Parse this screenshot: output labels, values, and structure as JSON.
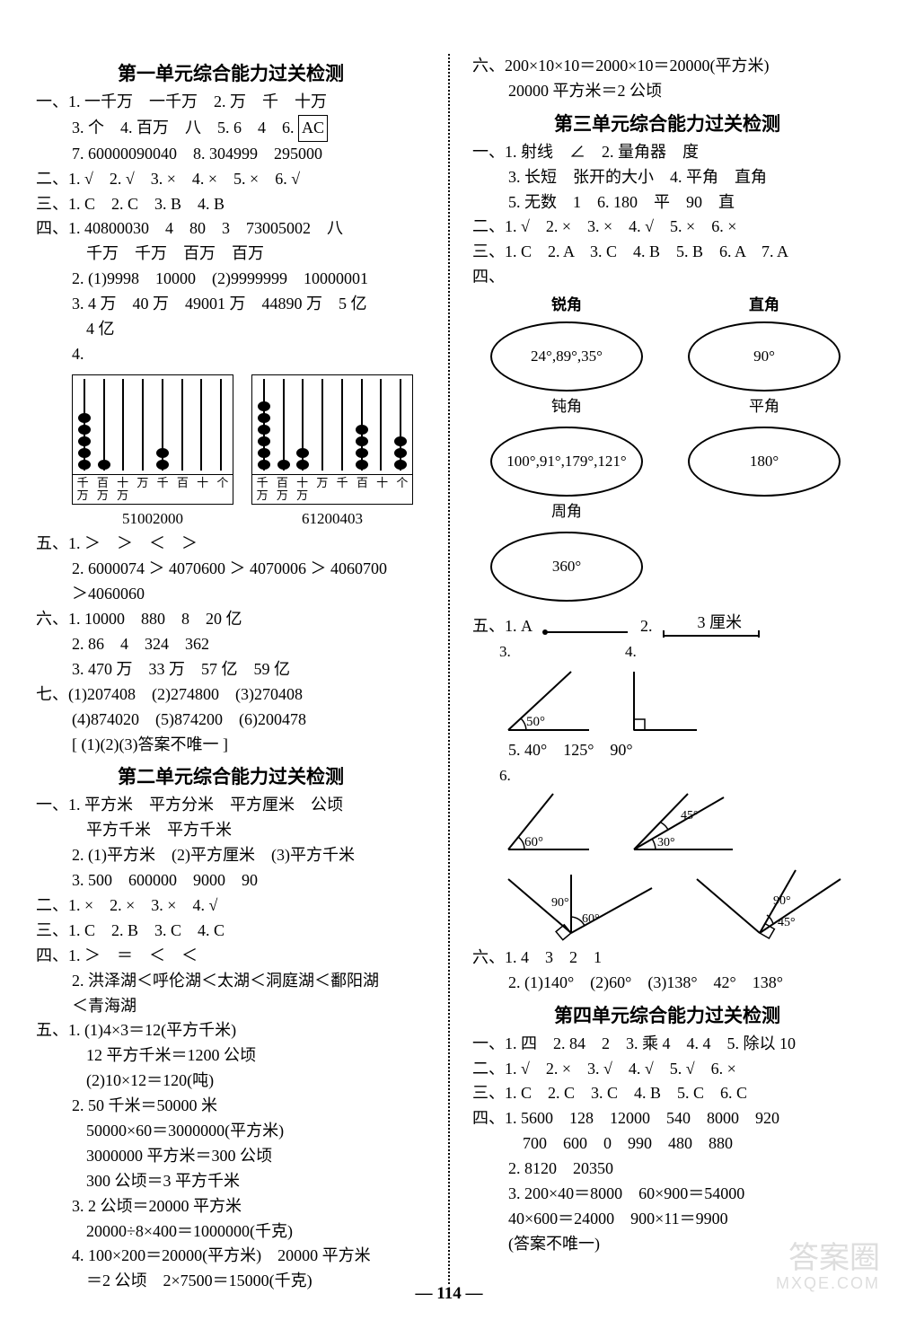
{
  "unit1": {
    "title": "第一单元综合能力过关检测",
    "l1": "一、1. 一千万　一千万　2. 万　千　十万",
    "l2a": "3. 个　4. 百万　八　5. 6　4　6. ",
    "l2b": "AC",
    "l3": "7. 60000090040　8. 304999　295000",
    "l4": "二、1. √　2. √　3. ×　4. ×　5. ×　6. √",
    "l5": "三、1. C　2. C　3. B　4. B",
    "l6": "四、1. 40800030　4　80　3　73005002　八",
    "l7": "千万　千万　百万　百万",
    "l8": "2. (1)9998　10000　(2)9999999　10000001",
    "l9": "3. 4 万　40 万　49001 万　44890 万　5 亿",
    "l10": "4 亿",
    "l11": "4.",
    "abacus1": {
      "beads": [
        5,
        1,
        0,
        0,
        2,
        0,
        0,
        0
      ],
      "labels": [
        "千万",
        "百万",
        "十万",
        "万",
        "千",
        "百",
        "十",
        "个"
      ],
      "num": "51002000"
    },
    "abacus2": {
      "beads": [
        6,
        1,
        2,
        0,
        0,
        4,
        0,
        3
      ],
      "labels": [
        "千万",
        "百万",
        "十万",
        "万",
        "千",
        "百",
        "十",
        "个"
      ],
      "num": "61200403"
    },
    "l12": "五、1. ＞　＞　＜　＞",
    "l13": "2. 6000074 ＞ 4070600 ＞ 4070006 ＞ 4060700",
    "l14": "＞4060060",
    "l15": "六、1. 10000　880　8　20 亿",
    "l16": "2. 86　4　324　362",
    "l17": "3. 470 万　33 万　57 亿　59 亿",
    "l18": "七、(1)207408　(2)274800　(3)270408",
    "l19": "(4)874020　(5)874200　(6)200478",
    "l20": "[ (1)(2)(3)答案不唯一 ]"
  },
  "unit2": {
    "title": "第二单元综合能力过关检测",
    "l1": "一、1. 平方米　平方分米　平方厘米　公顷",
    "l2": "平方千米　平方千米",
    "l3": "2. (1)平方米　(2)平方厘米　(3)平方千米",
    "l4": "3. 500　600000　9000　90",
    "l5": "二、1. ×　2. ×　3. ×　4. √",
    "l6": "三、1. C　2. B　3. C　4. C",
    "l7": "四、1. ＞　＝　＜　＜",
    "l8": "2. 洪泽湖＜呼伦湖＜太湖＜洞庭湖＜鄱阳湖",
    "l9": "＜青海湖",
    "l10": "五、1. (1)4×3＝12(平方千米)",
    "l11": "12 平方千米＝1200 公顷",
    "l12": "(2)10×12＝120(吨)",
    "l13": "2. 50 千米＝50000 米",
    "l14": "50000×60＝3000000(平方米)",
    "l15": "3000000 平方米＝300 公顷",
    "l16": "300 公顷＝3 平方千米",
    "l17": "3. 2 公顷＝20000 平方米",
    "l18": "20000÷8×400＝1000000(千克)",
    "l19": "4. 100×200＝20000(平方米)　20000 平方米",
    "l20": "＝2 公顷　2×7500＝15000(千克)"
  },
  "unit2r": {
    "l1": "六、200×10×10＝2000×10＝20000(平方米)",
    "l2": "20000 平方米＝2 公顷"
  },
  "unit3": {
    "title": "第三单元综合能力过关检测",
    "l1": "一、1. 射线　∠　2. 量角器　度",
    "l2": "3. 长短　张开的大小　4. 平角　直角",
    "l3": "5. 无数　1　6. 180　平　90　直",
    "l4": "二、1. √　2. ×　3. ×　4. √　5. ×　6. ×",
    "l5": "三、1. C　2. A　3. C　4. B　5. B　6. A　7. A",
    "l6": "四、",
    "hdr1": "锐角",
    "hdr2": "直角",
    "ov1": "24°,89°,35°",
    "ov2": "90°",
    "lab1": "钝角",
    "lab2": "平角",
    "ov3": "100°,91°,179°,121°",
    "ov4": "180°",
    "lab3": "周角",
    "ov5": "360°",
    "l51a": "五、1. A",
    "l51b": "2.",
    "l51c": "3 厘米",
    "a3": "3.",
    "a3l": "50°",
    "a4": "4.",
    "l55": "5. 40°　125°　90°",
    "a6": "6.",
    "a6a": "60°",
    "a6b": "45°",
    "a6c": "30°",
    "a7a": "90°",
    "a7b": "60°",
    "a7c": "90°",
    "a7d": "45°",
    "l61": "六、1. 4　3　2　1",
    "l62": "2. (1)140°　(2)60°　(3)138°　42°　138°"
  },
  "unit4": {
    "title": "第四单元综合能力过关检测",
    "l1": "一、1. 四　2. 84　2　3. 乘 4　4. 4　5. 除以 10",
    "l2": "二、1. √　2. ×　3. √　4. √　5. √　6. ×",
    "l3": "三、1. C　2. C　3. C　4. B　5. C　6. C",
    "l4": "四、1. 5600　128　12000　540　8000　920",
    "l5": "700　600　0　990　480　880",
    "l6": "2. 8120　20350",
    "l7": "3. 200×40＝8000　60×900＝54000",
    "l8": "40×600＝24000　900×11＝9900",
    "l9": "(答案不唯一)"
  },
  "pagenum": "— 114 —",
  "wm1": "答案圈",
  "wm2": "MXQE.COM"
}
